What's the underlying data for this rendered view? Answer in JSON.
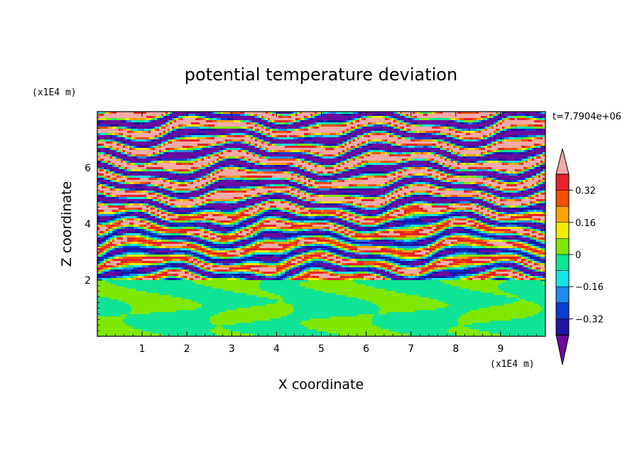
{
  "chart_data": {
    "type": "heatmap",
    "title": "potential temperature deviation",
    "xlabel": "X coordinate",
    "ylabel": "Z coordinate",
    "x_unit": "(x1E4 m)",
    "y_unit": "(x1E4 m)",
    "time_label": "t=7.7904e+06",
    "xlim": [
      0,
      10
    ],
    "ylim": [
      0,
      8
    ],
    "x_ticks": [
      "1",
      "2",
      "3",
      "4",
      "5",
      "6",
      "7",
      "8",
      "9"
    ],
    "y_ticks": [
      "2",
      "4",
      "6"
    ],
    "colorbar": {
      "labels": [
        "0.32",
        "0.16",
        "0",
        "-0.16",
        "-0.32"
      ],
      "label_texts": [
        "0.32",
        "0.16",
        "0",
        "−0.16",
        "−0.32"
      ],
      "levels": [
        -0.4,
        -0.32,
        -0.24,
        -0.16,
        -0.08,
        0,
        0.08,
        0.16,
        0.24,
        0.32,
        0.4
      ],
      "colors": [
        "#6a0a9e",
        "#1f14a3",
        "#0a3cd0",
        "#1e8cf0",
        "#14e6e6",
        "#10e496",
        "#80e800",
        "#f0ee00",
        "#f7a400",
        "#f05000",
        "#e8202a",
        "#f3aaa8"
      ],
      "extend": "both"
    },
    "layers": {
      "stable_layer_z_top": 2.0,
      "lower_layer_colors": [
        "#10e496",
        "#80e800"
      ]
    }
  }
}
